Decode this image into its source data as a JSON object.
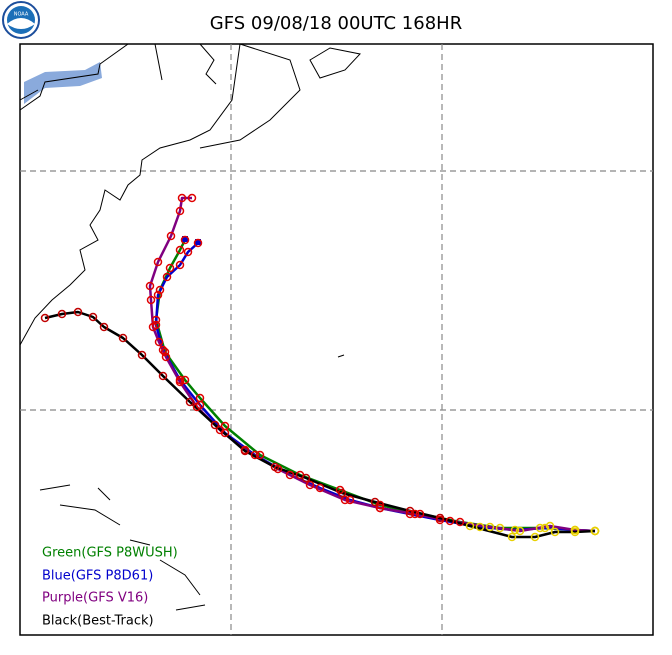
{
  "title": "GFS 09/08/18 00UTC 168HR",
  "legend": [
    {
      "label": "Green(GFS P8WUSH)",
      "color": "#008000"
    },
    {
      "label": "Blue(GFS P8D61)",
      "color": "#0000cc"
    },
    {
      "label": "Purple(GFS V16)",
      "color": "#800080"
    },
    {
      "label": "Black(Best-Track)",
      "color": "#000000"
    }
  ]
}
